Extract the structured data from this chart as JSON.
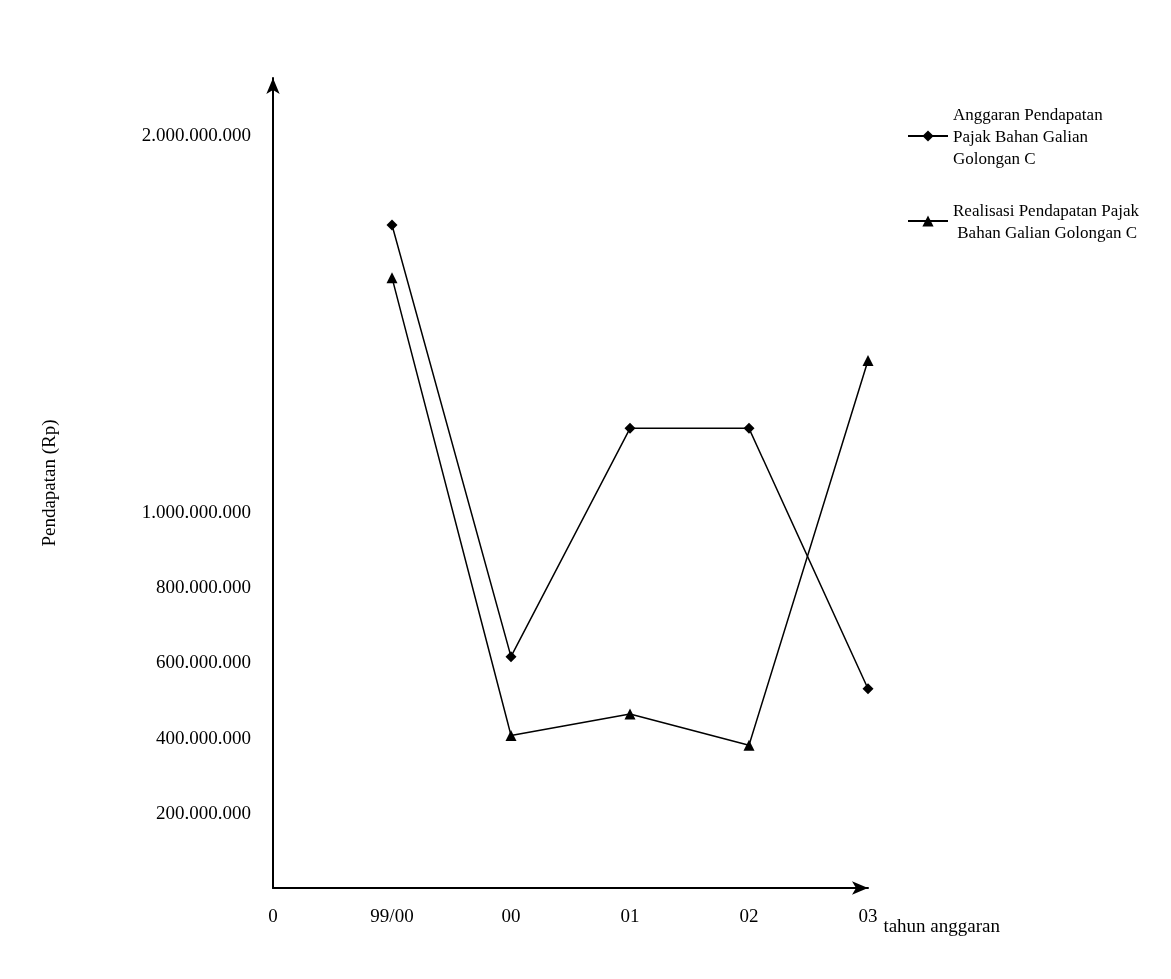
{
  "chart_data": {
    "type": "line",
    "xlabel": "tahun anggaran",
    "ylabel": "Pendapatan (Rp)",
    "categories": [
      "0",
      "99/00",
      "00",
      "01",
      "02",
      "03"
    ],
    "series": [
      {
        "name": "Anggaran Pendapatan Pajak Bahan Galian Golongan C",
        "color": "#000000",
        "marker": "diamond",
        "values": [
          null,
          1760000000,
          614000000,
          1220000000,
          1220000000,
          529000000
        ]
      },
      {
        "name": "Realisasi Pendapatan Pajak Bahan Galian Golongan C",
        "color": "#000000",
        "marker": "triangle",
        "values": [
          null,
          1620000000,
          405000000,
          462000000,
          379000000,
          1400000000
        ]
      }
    ],
    "ylim": [
      0,
      2150000000
    ],
    "yticks": [
      {
        "value": 200000000,
        "label": "200.000.000"
      },
      {
        "value": 400000000,
        "label": "400.000.000"
      },
      {
        "value": 600000000,
        "label": "600.000.000"
      },
      {
        "value": 800000000,
        "label": "800.000.000"
      },
      {
        "value": 1000000000,
        "label": "1.000.000.000"
      },
      {
        "value": 2000000000,
        "label": "2.000.000.000"
      }
    ],
    "grid": false,
    "legend": "top right",
    "line_style": "solid"
  }
}
